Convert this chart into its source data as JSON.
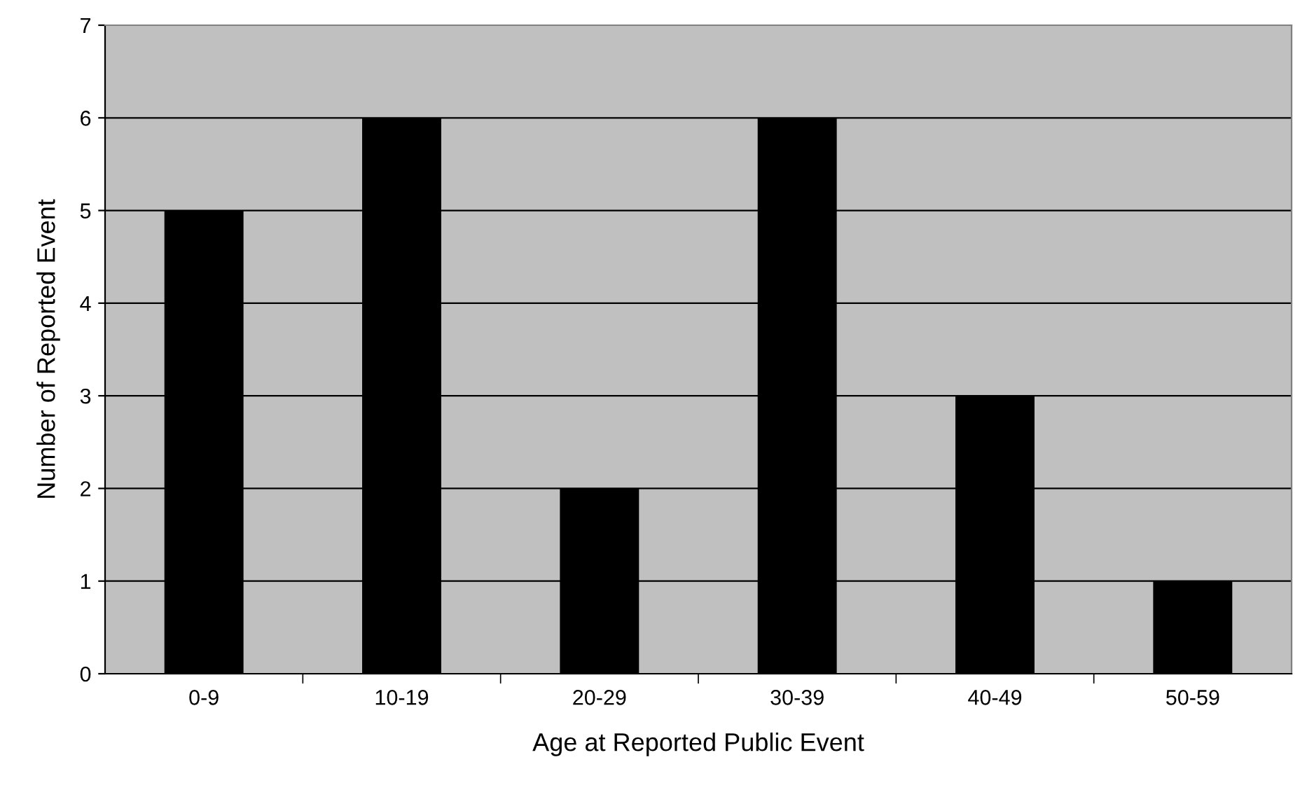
{
  "chart_data": {
    "type": "bar",
    "xlabel": "Age at Reported Public Event",
    "ylabel": "Number of Reported Event",
    "categories": [
      "0-9",
      "10-19",
      "20-29",
      "30-39",
      "40-49",
      "50-59"
    ],
    "values": [
      5,
      6,
      2,
      6,
      3,
      1
    ],
    "color": "#000000",
    "ylim": [
      0,
      7
    ],
    "yticks": [
      0,
      1,
      2,
      3,
      4,
      5,
      6,
      7
    ],
    "grid": "y",
    "legend": false
  }
}
